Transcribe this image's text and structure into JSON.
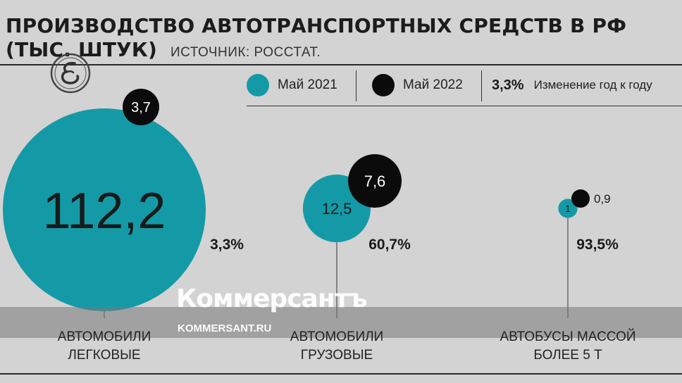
{
  "header": {
    "title_line1": "ПРОИЗВОДСТВО АВТОТРАНСПОРТНЫХ СРЕДСТВ В РФ",
    "title_line2": "(ТЫС. ШТУК)",
    "source": "ИСТОЧНИК: РОССТАТ."
  },
  "legend": {
    "may2021": "Май 2021",
    "may2022": "Май 2022",
    "change_value": "3,3%",
    "change_label": "Изменение год к году"
  },
  "colors": {
    "may2021": "#149aa6",
    "may2022": "#0b0b0b",
    "background": "#d3d3d3"
  },
  "watermark": {
    "brand": "Коммерсантъ",
    "site": "KOMMERSANT.RU"
  },
  "chart_data": {
    "type": "bubble",
    "title": "ПРОИЗВОДСТВО АВТОТРАНСПОРТНЫХ СРЕДСТВ В РФ (ТЫС. ШТУК)",
    "series": [
      {
        "name": "Май 2021",
        "values": [
          112.2,
          12.5,
          1
        ]
      },
      {
        "name": "Май 2022",
        "values": [
          3.7,
          7.6,
          0.9
        ]
      }
    ],
    "categories": [
      {
        "line1": "АВТОМОБИЛИ",
        "line2": "ЛЕГКОВЫЕ"
      },
      {
        "line1": "АВТОМОБИЛИ",
        "line2": "ГРУЗОВЫЕ"
      },
      {
        "line1": "АВТОБУСЫ МАССОЙ",
        "line2": "БОЛЕЕ 5 Т"
      }
    ],
    "labels_2021": [
      "112,2",
      "12,5",
      "1"
    ],
    "labels_2022": [
      "3,7",
      "7,6",
      "0,9"
    ],
    "change": [
      "3,3%",
      "60,7%",
      "93,5%"
    ]
  }
}
